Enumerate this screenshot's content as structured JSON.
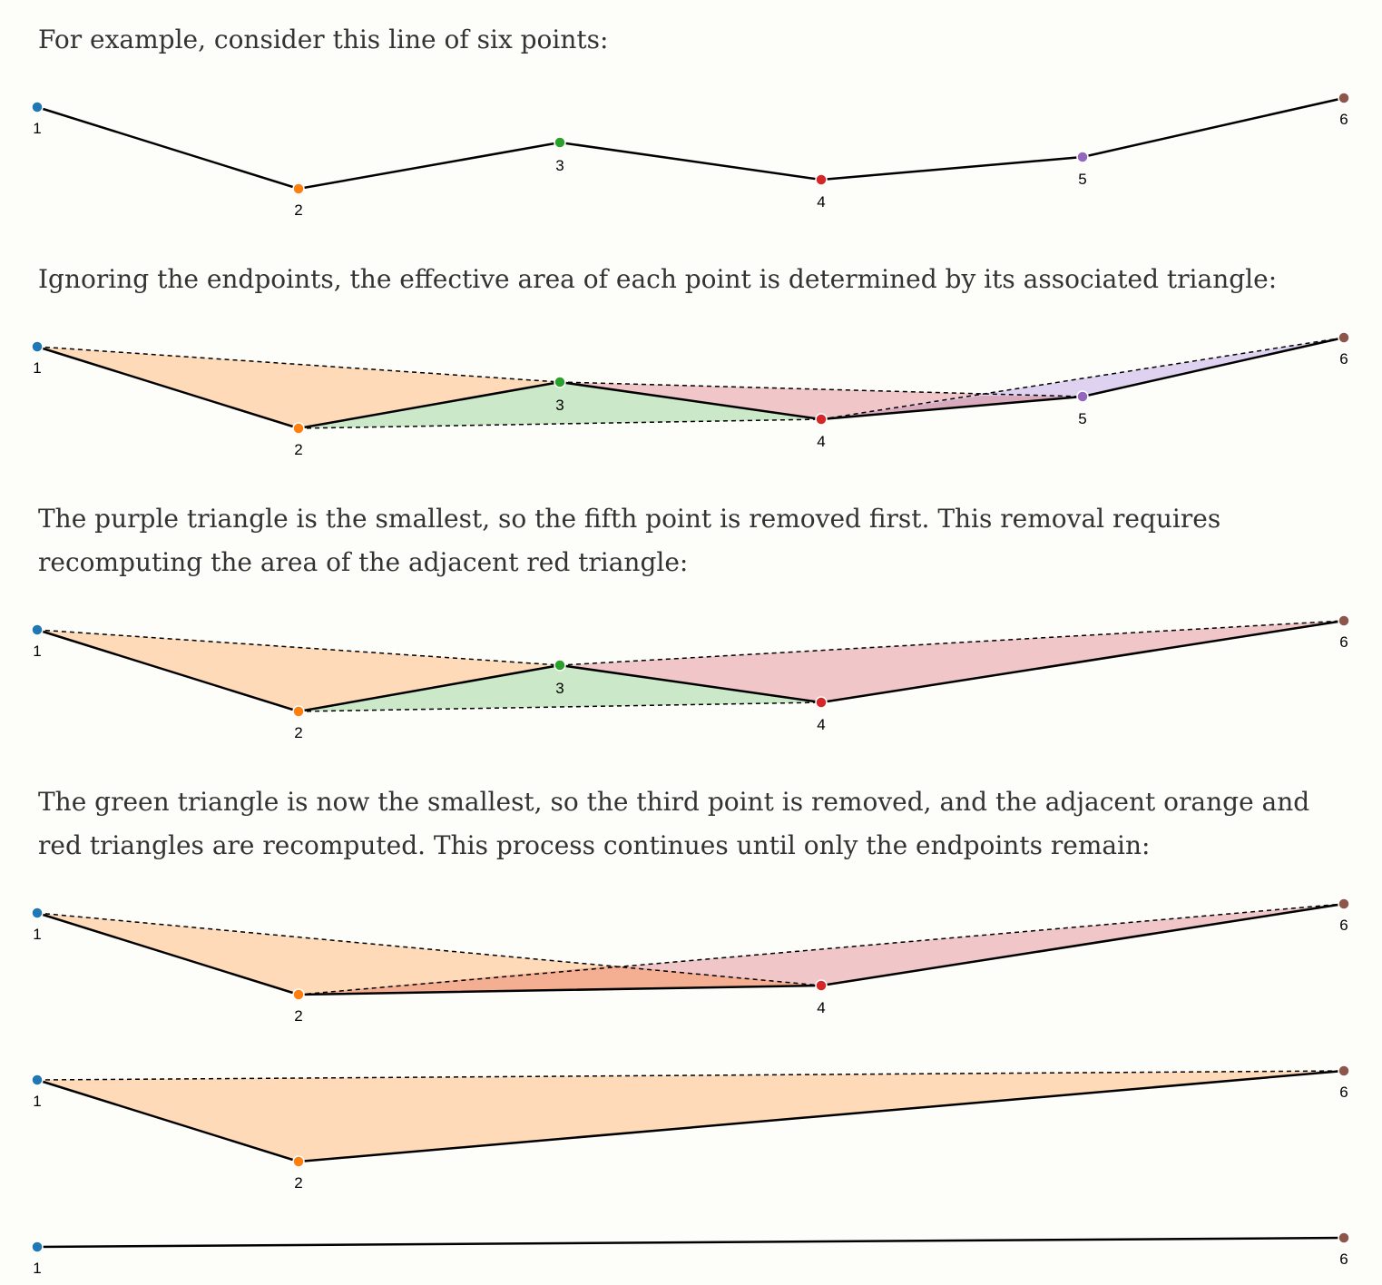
{
  "paragraphs": [
    "For example, consider this line of six points:",
    "Ignoring the endpoints, the effective area of each point is determined by its associated triangle:",
    "The purple triangle is the smallest, so the fifth point is removed first. This removal requires recomputing the area of the adjacent red triangle:",
    "The green triangle is now the smallest, so the third point is removed, and the adjacent orange and red triangles are recomputed. This process continues until only the endpoints remain:"
  ],
  "colors": {
    "line": "#000000",
    "point_stroke": "#ffffff",
    "p1": "#1f77b4",
    "p2": "#ff7f0e",
    "p3": "#2ca02c",
    "p4": "#d62728",
    "p5": "#9467bd",
    "p6": "#8c564b",
    "fill_orange": "#ffd6b0",
    "fill_green": "#c5e5c2",
    "fill_red": "#f0c0c2",
    "fill_purple": "#dccdee",
    "fill_overlap_red_purple": "#d9a9bc",
    "fill_overlap_orange_red": "#f4ae92"
  },
  "figures": [
    {
      "name": "figure-six-points",
      "labels": [
        "1",
        "2",
        "3",
        "4",
        "5",
        "6"
      ],
      "triangles": []
    },
    {
      "name": "figure-triangles-all",
      "labels": [
        "1",
        "2",
        "3",
        "4",
        "5",
        "6"
      ],
      "triangles": [
        "orange",
        "green",
        "red",
        "purple"
      ]
    },
    {
      "name": "figure-point5-removed",
      "labels": [
        "1",
        "2",
        "3",
        "4",
        "6"
      ],
      "triangles": [
        "orange",
        "green",
        "red"
      ]
    },
    {
      "name": "figure-point3-removed",
      "labels": [
        "1",
        "2",
        "4",
        "6"
      ],
      "triangles": [
        "orange",
        "red"
      ]
    },
    {
      "name": "figure-point4-removed",
      "labels": [
        "1",
        "2",
        "6"
      ],
      "triangles": [
        "orange"
      ]
    },
    {
      "name": "figure-endpoints-only",
      "labels": [
        "1",
        "6"
      ],
      "triangles": []
    }
  ]
}
